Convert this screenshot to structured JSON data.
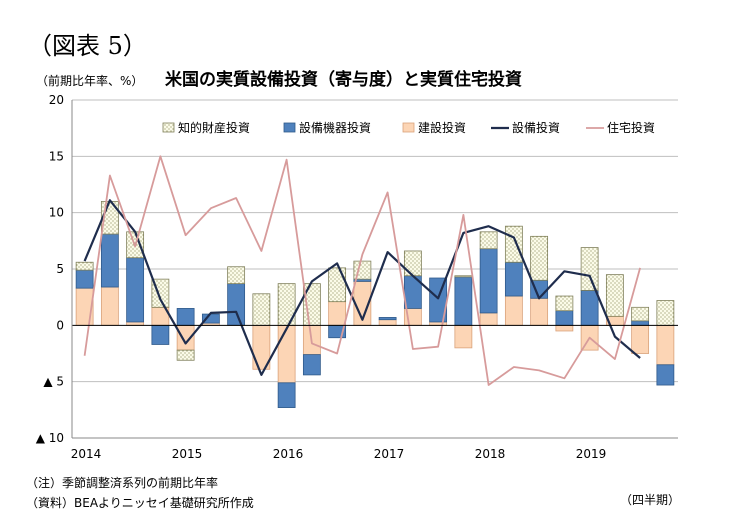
{
  "figure_label": "（図表 5）",
  "unit_label": "（前期比年率、%）",
  "title": "米国の実質設備投資（寄与度）と実質住宅投資",
  "note": "（注）季節調整済系列の前期比年率",
  "source": "（資料）BEAよりニッセイ基礎研究所作成",
  "x_unit_label": "（四半期）",
  "colors": {
    "ip": "#fbfbe8",
    "equipment": "#4f81bd",
    "structures": "#fcd5b5",
    "total": "#1f2d4d",
    "residential": "#d79b9b"
  },
  "chart_data": {
    "type": "bar",
    "stacked": true,
    "title": "米国の実質設備投資（寄与度）と実質住宅投資",
    "ylabel": "（前期比年率、%）",
    "xlabel": "（四半期）",
    "ylim": [
      -10,
      20
    ],
    "y_ticks": [
      {
        "value": 20,
        "label": "20"
      },
      {
        "value": 15,
        "label": "15"
      },
      {
        "value": 10,
        "label": "10"
      },
      {
        "value": 5,
        "label": "5"
      },
      {
        "value": 0,
        "label": "0"
      },
      {
        "value": -5,
        "label": "▲ 5"
      },
      {
        "value": -10,
        "label": "▲ 10"
      }
    ],
    "grid": true,
    "legend_position": "top",
    "categories": [
      "2014Q1",
      "2014Q2",
      "2014Q3",
      "2014Q4",
      "2015Q1",
      "2015Q2",
      "2015Q3",
      "2015Q4",
      "2016Q1",
      "2016Q2",
      "2016Q3",
      "2016Q4",
      "2017Q1",
      "2017Q2",
      "2017Q3",
      "2017Q4",
      "2018Q1",
      "2018Q2",
      "2018Q3",
      "2018Q4",
      "2019Q1",
      "2019Q2",
      "2019Q3",
      "2019Q4"
    ],
    "year_labels": [
      {
        "index": 0,
        "label": "2014"
      },
      {
        "index": 4,
        "label": "2015"
      },
      {
        "index": 8,
        "label": "2016"
      },
      {
        "index": 12,
        "label": "2017"
      },
      {
        "index": 16,
        "label": "2018"
      },
      {
        "index": 20,
        "label": "2019"
      }
    ],
    "bar_series": [
      {
        "key": "structures",
        "name": "建設投資",
        "values": [
          3.3,
          3.4,
          0.3,
          1.6,
          -2.2,
          0.2,
          0,
          -3.9,
          -5.1,
          -2.6,
          2.1,
          3.9,
          0.5,
          1.5,
          0.3,
          -2.0,
          1.1,
          2.6,
          2.4,
          -0.5,
          -2.2,
          0.8,
          -2.5,
          -3.5
        ]
      },
      {
        "key": "equipment",
        "name": "設備機器投資",
        "values": [
          1.6,
          4.7,
          5.7,
          -1.7,
          1.5,
          0.8,
          3.7,
          0,
          -2.2,
          -1.8,
          -1.1,
          0.2,
          0.2,
          2.9,
          3.9,
          4.3,
          5.7,
          3.0,
          1.6,
          1.3,
          3.1,
          0,
          0.4,
          -1.8
        ]
      },
      {
        "key": "ip",
        "name": "知的財産投資",
        "values": [
          0.7,
          2.9,
          2.3,
          2.5,
          -0.9,
          0,
          1.5,
          2.8,
          3.7,
          3.7,
          3.0,
          1.6,
          0,
          2.2,
          0,
          0.1,
          1.5,
          3.2,
          3.9,
          1.3,
          3.8,
          3.7,
          1.2,
          2.2
        ]
      }
    ],
    "line_series": [
      {
        "key": "total",
        "name": "設備投資",
        "values": [
          5.7,
          11.1,
          8.3,
          2.3,
          -1.6,
          1.1,
          1.2,
          -4.4,
          -0.3,
          3.9,
          5.5,
          0.5,
          6.5,
          4.4,
          2.4,
          8.2,
          8.8,
          7.8,
          2.4,
          4.8,
          4.4,
          -1.0,
          -2.9,
          null
        ]
      },
      {
        "key": "residential",
        "name": "住宅投資",
        "values": [
          -2.7,
          13.3,
          7.0,
          15.0,
          8.0,
          10.4,
          11.3,
          6.6,
          14.7,
          -1.6,
          -2.5,
          6.3,
          11.8,
          -2.1,
          -1.9,
          9.8,
          -5.3,
          -3.7,
          -4.0,
          -4.7,
          -1.1,
          -3.0,
          5.1,
          null
        ]
      }
    ],
    "legend": [
      "知的財産投資",
      "設備機器投資",
      "建設投資",
      "設備投資",
      "住宅投資"
    ]
  }
}
